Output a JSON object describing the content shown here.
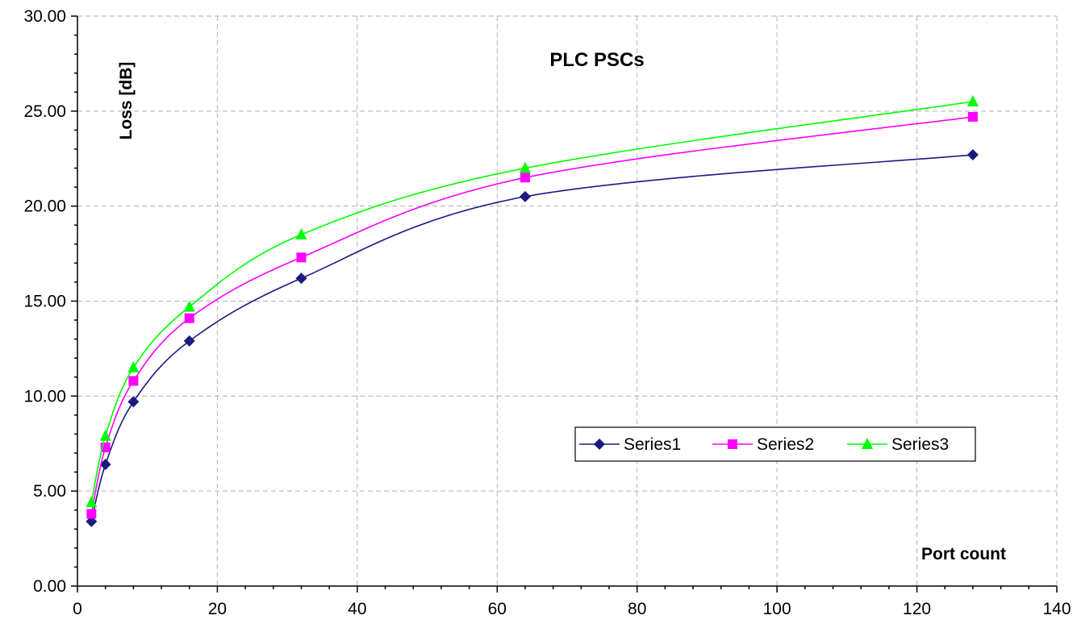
{
  "chart_data": {
    "type": "line",
    "title": "PLC PSCs",
    "xlabel": "Port count",
    "ylabel": "Loss [dB]",
    "xlim": [
      0,
      140
    ],
    "ylim": [
      0,
      30
    ],
    "x_ticks": [
      "0",
      "20",
      "40",
      "60",
      "80",
      "100",
      "120",
      "140"
    ],
    "y_ticks": [
      "0.00",
      "5.00",
      "10.00",
      "15.00",
      "20.00",
      "25.00",
      "30.00"
    ],
    "x": [
      2,
      4,
      8,
      16,
      32,
      64,
      128
    ],
    "grid": true,
    "legend_position": "right-center",
    "series": [
      {
        "name": "Series1",
        "color": "#1a1a80",
        "marker": "diamond",
        "values": [
          3.4,
          6.4,
          9.7,
          12.9,
          16.2,
          20.5,
          22.7
        ]
      },
      {
        "name": "Series2",
        "color": "#ff00ff",
        "marker": "square",
        "values": [
          3.8,
          7.3,
          10.8,
          14.1,
          17.3,
          21.5,
          24.7
        ]
      },
      {
        "name": "Series3",
        "color": "#00ff00",
        "marker": "triangle",
        "values": [
          4.4,
          7.9,
          11.5,
          14.7,
          18.5,
          22.0,
          25.5
        ]
      }
    ]
  }
}
